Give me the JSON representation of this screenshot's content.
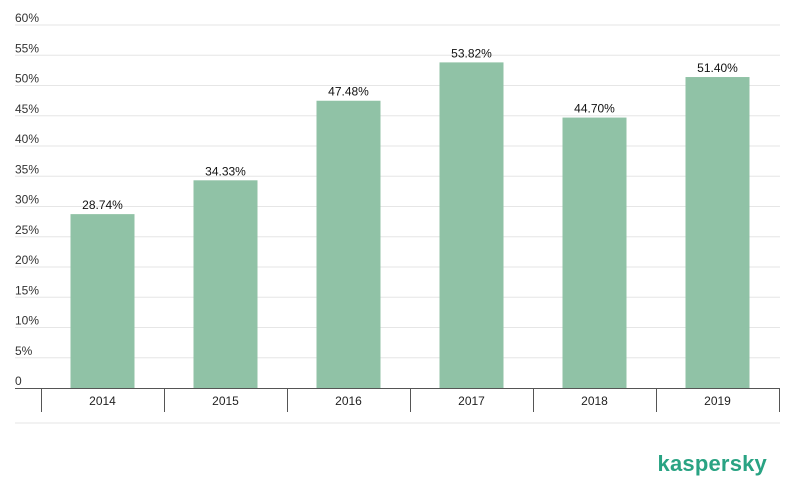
{
  "chart_data": {
    "type": "bar",
    "categories": [
      "2014",
      "2015",
      "2016",
      "2017",
      "2018",
      "2019"
    ],
    "values": [
      28.74,
      34.33,
      47.48,
      53.82,
      44.7,
      51.4
    ],
    "data_labels": [
      "28.74%",
      "34.33%",
      "47.48%",
      "53.82%",
      "44.70%",
      "51.40%"
    ],
    "y_ticks": [
      0,
      5,
      10,
      15,
      20,
      25,
      30,
      35,
      40,
      45,
      50,
      55,
      60
    ],
    "y_tick_labels": [
      "0",
      "5%",
      "10%",
      "15%",
      "20%",
      "25%",
      "30%",
      "35%",
      "40%",
      "45%",
      "50%",
      "55%",
      "60%"
    ],
    "ylim": [
      0,
      60
    ],
    "title": "",
    "xlabel": "",
    "ylabel": "",
    "grid": true,
    "legend": "none",
    "bar_color": "#90c2a6"
  },
  "brand": {
    "name": "kaspersky",
    "color": "#29a383"
  }
}
